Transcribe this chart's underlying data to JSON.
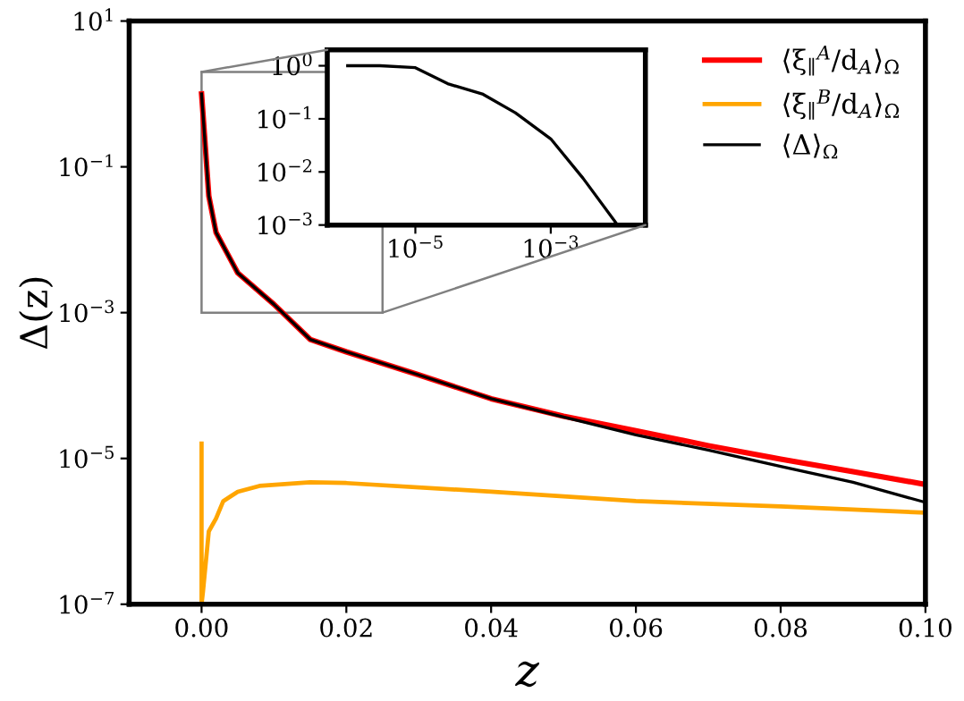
{
  "chart_data": [
    {
      "type": "line",
      "xlabel": "z",
      "ylabel": "Δ(z)",
      "log": "y",
      "xlim": [
        -0.01,
        0.1
      ],
      "ylim": [
        1e-07,
        10
      ],
      "xticks": [
        {
          "value": 0,
          "label": "0.00"
        },
        {
          "value": 0.02,
          "label": "0.02"
        },
        {
          "value": 0.04,
          "label": "0.04"
        },
        {
          "value": 0.06,
          "label": "0.06"
        },
        {
          "value": 0.08,
          "label": "0.08"
        },
        {
          "value": 0.1,
          "label": "0.10"
        }
      ],
      "yticks": [
        {
          "value": 1e-07,
          "label": "10$^{−7}$"
        },
        {
          "value": 1e-05,
          "label": "10$^{−5}$"
        },
        {
          "value": 0.001,
          "label": "10$^{−3}$"
        },
        {
          "value": 0.1,
          "label": "10$^{−1}$"
        },
        {
          "value": 10,
          "label": "10$^{1}$"
        }
      ],
      "legend": "top right",
      "grid": false,
      "series": [
        {
          "name": "⟨ξ$_{∥}$$^{A}$/d$_{A}$⟩$_{Ω}$",
          "color": "#ff0000",
          "x": [
            0,
            0.001,
            0.002,
            0.005,
            0.01,
            0.015,
            0.02,
            0.03,
            0.04,
            0.05,
            0.06,
            0.07,
            0.08,
            0.09,
            0.1
          ],
          "values": [
            1.0,
            0.04,
            0.0126,
            0.0035,
            0.0013,
            0.00043,
            0.00029,
            0.00014,
            6.6e-05,
            3.8e-05,
            2.4e-05,
            1.5e-05,
            9.8e-06,
            6.6e-06,
            4.4e-06
          ]
        },
        {
          "name": "⟨ξ$_{∥}$$^{B}$/d$_{A}$⟩$_{Ω}$",
          "color": "#ffa500",
          "x": [
            0,
            0,
            0.0002,
            0.001,
            0.002,
            0.003,
            0.005,
            0.008,
            0.015,
            0.02,
            0.04,
            0.06,
            0.08,
            0.1
          ],
          "values": [
            1.6e-05,
            1e-07,
            1.5e-07,
            1e-06,
            1.5e-06,
            2.6e-06,
            3.5e-06,
            4.2e-06,
            4.7e-06,
            4.6e-06,
            3.5e-06,
            2.6e-06,
            2.2e-06,
            1.8e-06
          ]
        },
        {
          "name": "⟨Δ⟩$_{Ω}$",
          "color": "#000000",
          "x": [
            0,
            0.001,
            0.002,
            0.005,
            0.01,
            0.015,
            0.02,
            0.03,
            0.04,
            0.05,
            0.06,
            0.07,
            0.08,
            0.09,
            0.1
          ],
          "values": [
            1.0,
            0.04,
            0.0126,
            0.0035,
            0.0013,
            0.00043,
            0.00029,
            0.00014,
            6.6e-05,
            3.7e-05,
            2.1e-05,
            1.3e-05,
            7.8e-06,
            4.7e-06,
            2.5e-06
          ]
        }
      ]
    },
    {
      "type": "line",
      "log": "xy",
      "xlim": [
        5e-07,
        0.025
      ],
      "ylim": [
        0.001,
        2
      ],
      "xticks": [
        {
          "value": 1e-05,
          "label": "10$^{−5}$"
        },
        {
          "value": 0.001,
          "label": "10$^{−3}$"
        }
      ],
      "yticks": [
        {
          "value": 0.001,
          "label": "10$^{−3}$"
        },
        {
          "value": 0.01,
          "label": "10$^{−2}$"
        },
        {
          "value": 0.1,
          "label": "10$^{−1}$"
        },
        {
          "value": 1,
          "label": "10$^{0}$"
        }
      ],
      "series": [
        {
          "color": "#000000",
          "x": [
            1e-06,
            3e-06,
            1e-05,
            3e-05,
            0.0001,
            0.0003,
            0.001,
            0.003,
            0.0097
          ],
          "values": [
            1.0,
            1.0,
            0.92,
            0.46,
            0.29,
            0.13,
            0.042,
            0.0076,
            0.001
          ]
        }
      ]
    }
  ]
}
